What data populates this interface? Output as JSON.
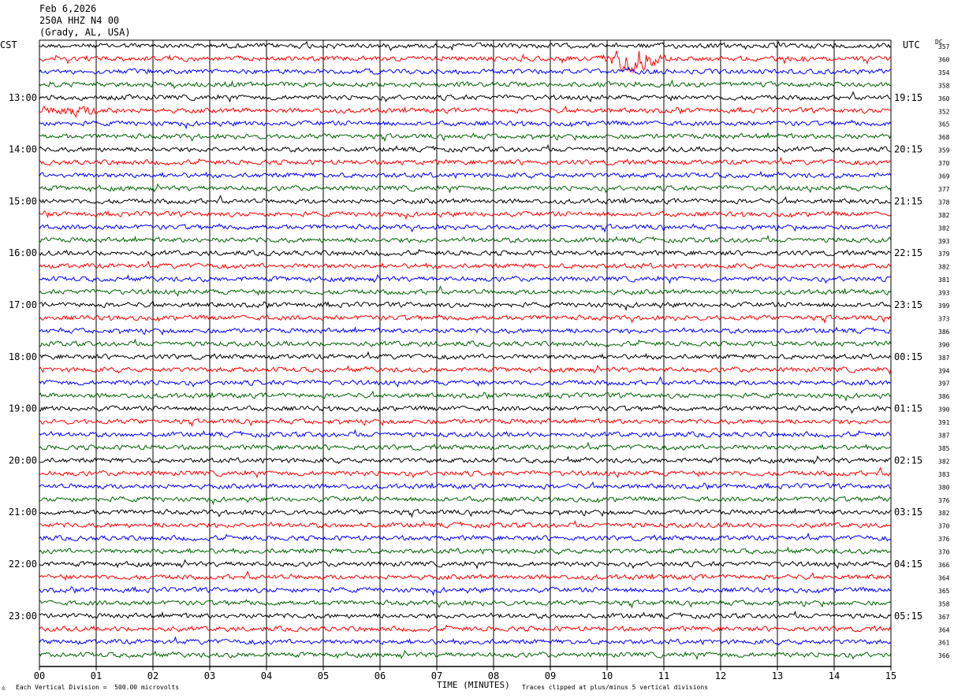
{
  "header": {
    "date": "Feb 6,2026",
    "station": "250A HHZ N4 00",
    "location": "(Grady, AL, USA)"
  },
  "left_zone": "CST",
  "right_zone": "UTC",
  "dc_label": "DC",
  "footer": {
    "scale": "Each Vertical Division =  500.00 microvolts",
    "xlabel": "TIME (MINUTES)",
    "clip": "Traces clipped at plus/minus 5 vertical divisions"
  },
  "chart_data": {
    "type": "line",
    "xlabel": "TIME (MINUTES)",
    "xlim": [
      0,
      15
    ],
    "x_ticks": [
      "00",
      "01",
      "02",
      "03",
      "04",
      "05",
      "06",
      "07",
      "08",
      "09",
      "10",
      "11",
      "12",
      "13",
      "14",
      "15"
    ],
    "trace_colors": [
      "#000000",
      "#ff0000",
      "#0000ff",
      "#006400"
    ],
    "left_hour_labels": [
      "13:00",
      "14:00",
      "15:00",
      "16:00",
      "17:00",
      "18:00",
      "19:00",
      "20:00",
      "21:00",
      "22:00",
      "23:00"
    ],
    "right_hour_labels": [
      "19:15",
      "20:15",
      "21:15",
      "22:15",
      "23:15",
      "00:15",
      "01:15",
      "02:15",
      "03:15",
      "04:15",
      "05:15"
    ],
    "dc_offsets": [
      357,
      360,
      354,
      358,
      360,
      352,
      365,
      368,
      359,
      370,
      369,
      377,
      378,
      382,
      382,
      393,
      379,
      382,
      381,
      393,
      399,
      373,
      386,
      390,
      387,
      394,
      397,
      386,
      390,
      391,
      387,
      385,
      382,
      383,
      380,
      376,
      382,
      370,
      376,
      370,
      366,
      364,
      365,
      358,
      367,
      364,
      361,
      366
    ],
    "events": [
      {
        "trace": 1,
        "minute": 10.45,
        "amplitude": "large"
      },
      {
        "trace": 5,
        "minute": 0.6,
        "amplitude": "medium"
      }
    ]
  }
}
